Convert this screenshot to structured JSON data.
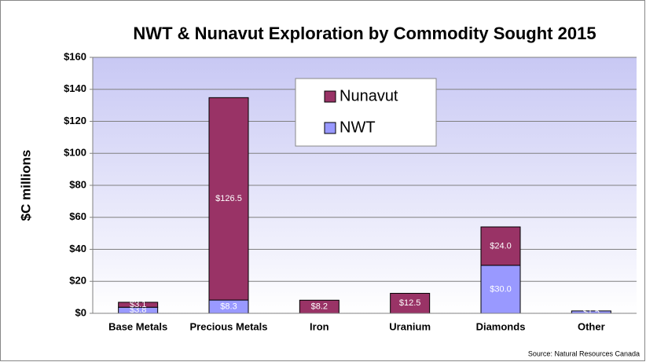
{
  "chart_data": {
    "type": "stacked_bar",
    "title": "NWT & Nunavut Exploration by Commodity Sought 2015",
    "y_label": "$C millions",
    "source": "Source: Natural Resources Canada",
    "categories": [
      "Base Metals",
      "Precious Metals",
      "Iron",
      "Uranium",
      "Diamonds",
      "Other"
    ],
    "series": [
      {
        "name": "NWT",
        "color": "#9999ff",
        "values": [
          3.8,
          8.3,
          null,
          null,
          30.0,
          1.5
        ],
        "value_labels": [
          "$3.8",
          "$8.3",
          null,
          null,
          "$30.0",
          "$1.5"
        ]
      },
      {
        "name": "Nunavut",
        "color": "#993366",
        "values": [
          3.1,
          126.5,
          8.2,
          12.5,
          24.0,
          null
        ],
        "value_labels": [
          "$3.1",
          "$126.5",
          "$8.2",
          "$12.5",
          "$24.0",
          null
        ]
      }
    ],
    "ylim": [
      0,
      160
    ],
    "yticks": [
      {
        "value": 0,
        "label": "$0"
      },
      {
        "value": 20,
        "label": "$20"
      },
      {
        "value": 40,
        "label": "$40"
      },
      {
        "value": 60,
        "label": "$60"
      },
      {
        "value": 80,
        "label": "$80"
      },
      {
        "value": 100,
        "label": "$100"
      },
      {
        "value": 120,
        "label": "$120"
      },
      {
        "value": 140,
        "label": "$140"
      },
      {
        "value": 160,
        "label": "$160"
      }
    ],
    "grid": true,
    "legend": "top-center"
  }
}
